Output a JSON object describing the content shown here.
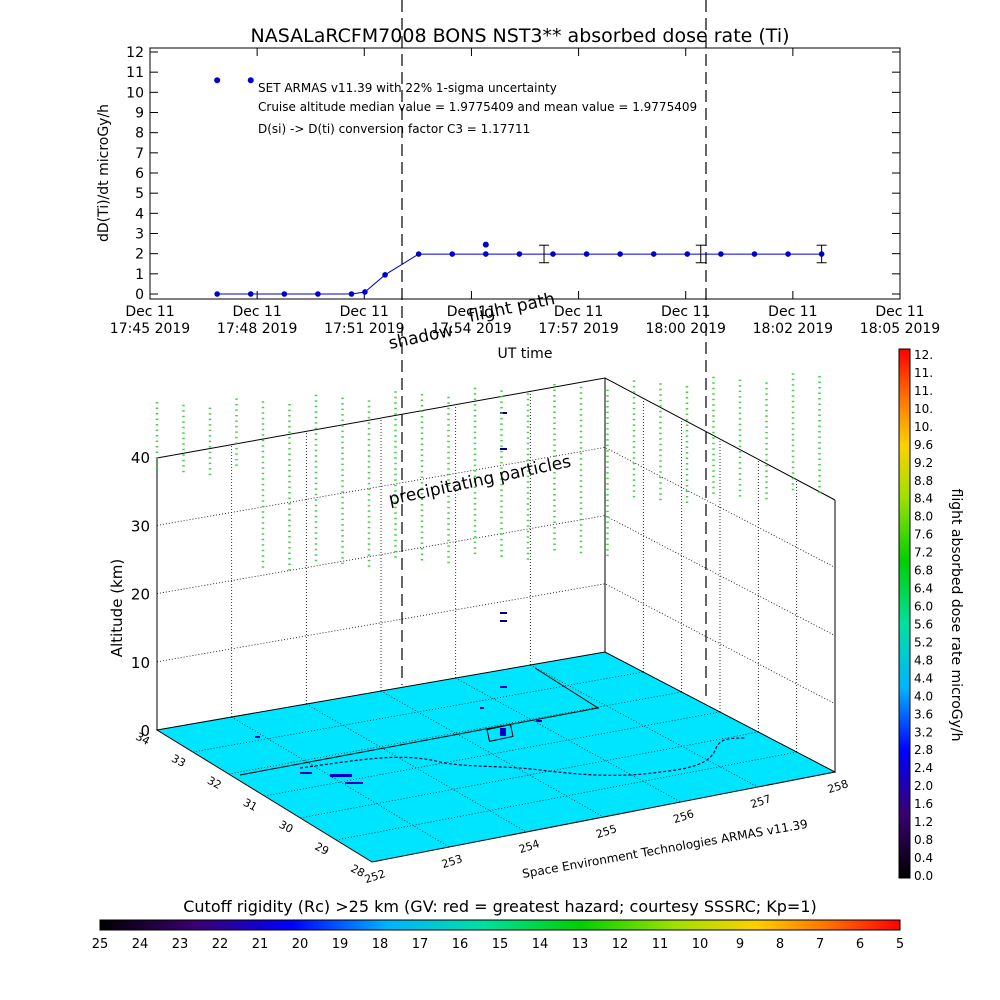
{
  "chart_data": [
    {
      "type": "line",
      "title": "NASALaRCFM7008  BONS NST3** absorbed dose rate (Ti)",
      "xlabel": "UT time",
      "ylabel": "dD(Ti)/dt microGy/h",
      "ylim": [
        0,
        12
      ],
      "y_ticks": [
        "0",
        "1",
        "2",
        "3",
        "4",
        "5",
        "6",
        "7",
        "8",
        "9",
        "10",
        "11",
        "12"
      ],
      "x_ticks": [
        {
          "line1": "Dec 11",
          "line2": "17:45 2019"
        },
        {
          "line1": "Dec 11",
          "line2": "17:48 2019"
        },
        {
          "line1": "Dec 11",
          "line2": "17:51 2019"
        },
        {
          "line1": "Dec 11",
          "line2": "17:54 2019"
        },
        {
          "line1": "Dec 11",
          "line2": "17:57 2019"
        },
        {
          "line1": "Dec 11",
          "line2": "18:00 2019"
        },
        {
          "line1": "Dec 11",
          "line2": "18:02 2019"
        },
        {
          "line1": "Dec 11",
          "line2": "18:05 2019"
        }
      ],
      "annotations": [
        "SET ARMAS v11.39 with 22% 1-sigma uncertainty",
        "Cruise altitude median value = 1.9775409 and mean value = 1.9775409",
        "D(si) -> D(ti) conversion factor C3 = 1.17711"
      ],
      "grid": false,
      "series": [
        {
          "color": "#0000cc",
          "x_minutes_after_1745": [
            3.0,
            4.5,
            6.0,
            7.5,
            9.0,
            9.6,
            10.5,
            12.0,
            13.5,
            15.0,
            16.5,
            18.0,
            19.5,
            21.0,
            22.5,
            24.0,
            25.5,
            27.0,
            28.5,
            30.0
          ],
          "values": [
            0,
            0,
            0,
            0,
            0,
            0.1,
            0.95,
            1.98,
            1.98,
            1.98,
            1.98,
            1.98,
            1.98,
            1.98,
            1.98,
            1.98,
            1.98,
            1.98,
            1.98,
            1.98
          ]
        }
      ],
      "outlier_points": [
        {
          "x_minutes_after_1745": 3.0,
          "value": 10.6
        },
        {
          "x_minutes_after_1745": 4.5,
          "value": 10.6
        },
        {
          "x_minutes_after_1745": 15.0,
          "value": 2.45
        }
      ],
      "error_bars": [
        {
          "x_minutes_after_1745": 17.6,
          "value": 1.98,
          "low": 1.55,
          "high": 2.42
        },
        {
          "x_minutes_after_1745": 24.6,
          "value": 1.98,
          "low": 1.55,
          "high": 2.42
        },
        {
          "x_minutes_after_1745": 30.0,
          "value": 1.98,
          "low": 1.55,
          "high": 2.42
        }
      ]
    },
    {
      "type": "other",
      "subtype": "3d-flight-track",
      "zlabel": "Altitude (km)",
      "z_ticks": [
        "0",
        "10",
        "20",
        "30",
        "40"
      ],
      "lat_ticks": [
        "28",
        "29",
        "30",
        "31",
        "32",
        "33",
        "34"
      ],
      "lon_ticks": [
        "252",
        "253",
        "254",
        "255",
        "256",
        "257",
        "258"
      ],
      "credit": "Space Environment Technologies ARMAS v11.39",
      "annotations": [
        "shadow",
        "flight path",
        "precipitating particles"
      ],
      "surface_color": "#00e5ff",
      "particle_color": "#33cc33"
    }
  ],
  "colorbar_right": {
    "label": "flight absorbed dose rate microGy/h",
    "ticks": [
      "12.",
      "11.",
      "11.",
      "10.",
      "10.",
      "9.6",
      "9.2",
      "8.8",
      "8.4",
      "8.0",
      "7.6",
      "7.2",
      "6.8",
      "6.4",
      "6.0",
      "5.6",
      "5.2",
      "4.8",
      "4.4",
      "4.0",
      "3.6",
      "3.2",
      "2.8",
      "2.4",
      "2.0",
      "1.6",
      "1.2",
      "0.8",
      "0.4",
      "0.0"
    ]
  },
  "colorbar_bottom": {
    "label": "Cutoff rigidity (Rc) >25 km (GV: red = greatest hazard; courtesy SSSRC; Kp=1)",
    "ticks": [
      "25",
      "24",
      "23",
      "22",
      "21",
      "20",
      "19",
      "18",
      "17",
      "16",
      "15",
      "14",
      "13",
      "12",
      "11",
      "10",
      "9",
      "8",
      "7",
      "6",
      "5"
    ]
  }
}
